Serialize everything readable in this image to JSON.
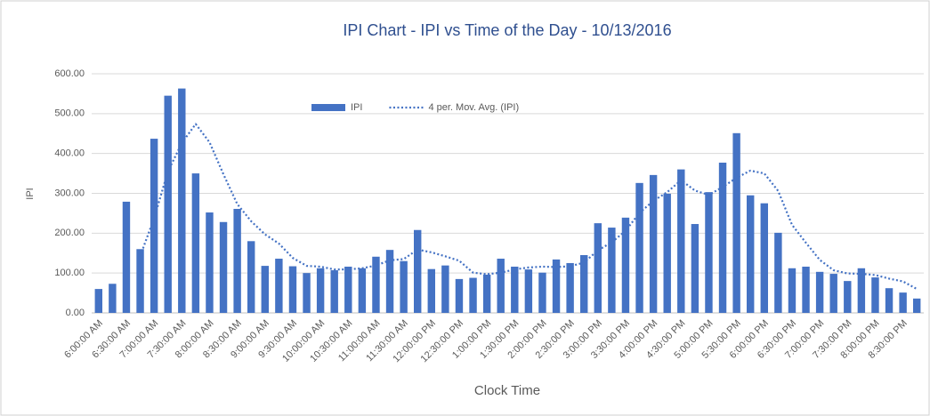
{
  "chart_data": {
    "type": "bar",
    "title": "IPI Chart - IPI vs Time of the Day - 10/13/2016",
    "x_label": "Clock Time",
    "y_label": "IPI",
    "categories": [
      "6:00:00 AM",
      null,
      "6:30:00 AM",
      null,
      "7:00:00 AM",
      null,
      "7:30:00 AM",
      null,
      "8:00:00 AM",
      null,
      "8:30:00 AM",
      null,
      "9:00:00 AM",
      null,
      "9:30:00 AM",
      null,
      "10:00:00 AM",
      null,
      "10:30:00 AM",
      null,
      "11:00:00 AM",
      null,
      "11:30:00 AM",
      null,
      "12:00:00 PM",
      null,
      "12:30:00 PM",
      null,
      "1:00:00 PM",
      null,
      "1:30:00 PM",
      null,
      "2:00:00 PM",
      null,
      "2:30:00 PM",
      null,
      "3:00:00 PM",
      null,
      "3:30:00 PM",
      null,
      "4:00:00 PM",
      null,
      "4:30:00 PM",
      null,
      "5:00:00 PM",
      null,
      "5:30:00 PM",
      null,
      "6:00:00 PM",
      null,
      "6:30:00 PM",
      null,
      "7:00:00 PM",
      null,
      "7:30:00 PM",
      null,
      "8:00:00 PM",
      null,
      "8:30:00 PM",
      null
    ],
    "series": [
      {
        "name": "IPI",
        "kind": "bar",
        "color": "#4472c4",
        "values": [
          60,
          73,
          279,
          160,
          437,
          545,
          563,
          350,
          252,
          228,
          261,
          180,
          118,
          136,
          117,
          100,
          112,
          107,
          116,
          112,
          141,
          158,
          130,
          208,
          110,
          119,
          85,
          88,
          96,
          136,
          116,
          109,
          101,
          134,
          125,
          145,
          225,
          214,
          239,
          326,
          346,
          299,
          360,
          223,
          303,
          377,
          451,
          295,
          275,
          201,
          112,
          116,
          103,
          98,
          80,
          112,
          89,
          62,
          51,
          36
        ]
      },
      {
        "name": "4 per. Mov. Avg. (IPI)",
        "kind": "dotted-line",
        "color": "#4472c4",
        "values": [
          null,
          null,
          null,
          143,
          237,
          355,
          426,
          474,
          428,
          348,
          273,
          230,
          197,
          174,
          138,
          118,
          116,
          109,
          109,
          112,
          119,
          132,
          135,
          159,
          152,
          142,
          131,
          101,
          97,
          101,
          109,
          114,
          116,
          115,
          117,
          126,
          157,
          177,
          206,
          251,
          281,
          303,
          333,
          307,
          296,
          316,
          339,
          357,
          350,
          306,
          221,
          176,
          133,
          107,
          99,
          98,
          95,
          86,
          79,
          60
        ]
      }
    ],
    "ylim": [
      0,
      600
    ],
    "yticks": [
      {
        "value": 0,
        "label": "0.00"
      },
      {
        "value": 100,
        "label": "100.00"
      },
      {
        "value": 200,
        "label": "200.00"
      },
      {
        "value": 300,
        "label": "300.00"
      },
      {
        "value": 400,
        "label": "400.00"
      },
      {
        "value": 500,
        "label": "500.00"
      },
      {
        "value": 600,
        "label": "600.00"
      }
    ],
    "grid": true,
    "legend": "top"
  }
}
